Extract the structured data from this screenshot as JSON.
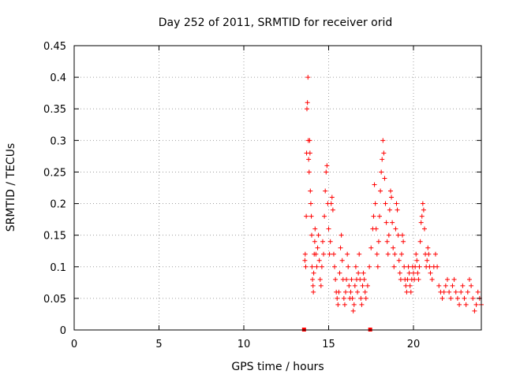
{
  "chart_data": {
    "type": "scatter",
    "title": "Day 252 of 2011, SRMTID for receiver orid",
    "xlabel": "GPS time / hours",
    "ylabel": "SRMTID / TECUs",
    "xlim": [
      0,
      24
    ],
    "ylim": [
      0,
      0.45
    ],
    "xticks": [
      0,
      5,
      10,
      15,
      20
    ],
    "yticks": [
      0,
      0.05,
      0.1,
      0.15,
      0.2,
      0.25,
      0.3,
      0.35,
      0.4,
      0.45
    ],
    "xtick_labels": [
      "0",
      "5",
      "10",
      "15",
      "20"
    ],
    "ytick_labels": [
      "0",
      "0.05",
      "0.1",
      "0.15",
      "0.2",
      "0.25",
      "0.3",
      "0.35",
      "0.4",
      "0.45"
    ],
    "grid": true,
    "marker_color": "#ff0000",
    "zero_markers_x": [
      13.55,
      17.45
    ],
    "series": [
      {
        "points": [
          [
            13.6,
            0.11
          ],
          [
            13.62,
            0.12
          ],
          [
            13.65,
            0.1
          ],
          [
            13.68,
            0.18
          ],
          [
            13.7,
            0.28
          ],
          [
            13.72,
            0.35
          ],
          [
            13.75,
            0.36
          ],
          [
            13.78,
            0.4
          ],
          [
            13.8,
            0.3
          ],
          [
            13.82,
            0.27
          ],
          [
            13.85,
            0.25
          ],
          [
            13.88,
            0.3
          ],
          [
            13.9,
            0.28
          ],
          [
            13.92,
            0.22
          ],
          [
            13.95,
            0.2
          ],
          [
            13.98,
            0.18
          ],
          [
            14.0,
            0.15
          ],
          [
            14.02,
            0.1
          ],
          [
            14.05,
            0.08
          ],
          [
            14.08,
            0.07
          ],
          [
            14.1,
            0.06
          ],
          [
            14.12,
            0.09
          ],
          [
            14.15,
            0.12
          ],
          [
            14.18,
            0.14
          ],
          [
            14.2,
            0.16
          ],
          [
            14.25,
            0.12
          ],
          [
            14.3,
            0.1
          ],
          [
            14.35,
            0.13
          ],
          [
            14.4,
            0.15
          ],
          [
            14.45,
            0.11
          ],
          [
            14.5,
            0.08
          ],
          [
            14.55,
            0.07
          ],
          [
            14.6,
            0.1
          ],
          [
            14.65,
            0.14
          ],
          [
            14.7,
            0.12
          ],
          [
            14.75,
            0.18
          ],
          [
            14.8,
            0.22
          ],
          [
            14.85,
            0.25
          ],
          [
            14.9,
            0.26
          ],
          [
            14.95,
            0.2
          ],
          [
            15.0,
            0.16
          ],
          [
            15.05,
            0.12
          ],
          [
            15.1,
            0.14
          ],
          [
            15.15,
            0.2
          ],
          [
            15.2,
            0.21
          ],
          [
            15.25,
            0.19
          ],
          [
            15.3,
            0.12
          ],
          [
            15.35,
            0.1
          ],
          [
            15.4,
            0.08
          ],
          [
            15.45,
            0.06
          ],
          [
            15.5,
            0.05
          ],
          [
            15.55,
            0.04
          ],
          [
            15.6,
            0.06
          ],
          [
            15.65,
            0.09
          ],
          [
            15.7,
            0.13
          ],
          [
            15.75,
            0.15
          ],
          [
            15.8,
            0.11
          ],
          [
            15.85,
            0.08
          ],
          [
            15.9,
            0.05
          ],
          [
            15.95,
            0.04
          ],
          [
            16.0,
            0.06
          ],
          [
            16.05,
            0.08
          ],
          [
            16.1,
            0.12
          ],
          [
            16.15,
            0.1
          ],
          [
            16.2,
            0.07
          ],
          [
            16.25,
            0.05
          ],
          [
            16.3,
            0.06
          ],
          [
            16.35,
            0.08
          ],
          [
            16.4,
            0.05
          ],
          [
            16.45,
            0.03
          ],
          [
            16.5,
            0.04
          ],
          [
            16.55,
            0.07
          ],
          [
            16.6,
            0.1
          ],
          [
            16.65,
            0.08
          ],
          [
            16.7,
            0.06
          ],
          [
            16.75,
            0.09
          ],
          [
            16.8,
            0.12
          ],
          [
            16.85,
            0.08
          ],
          [
            16.9,
            0.05
          ],
          [
            16.95,
            0.04
          ],
          [
            17.0,
            0.07
          ],
          [
            17.05,
            0.09
          ],
          [
            17.1,
            0.08
          ],
          [
            17.15,
            0.06
          ],
          [
            17.2,
            0.05
          ],
          [
            17.3,
            0.07
          ],
          [
            17.4,
            0.1
          ],
          [
            17.5,
            0.13
          ],
          [
            17.6,
            0.16
          ],
          [
            17.65,
            0.18
          ],
          [
            17.7,
            0.23
          ],
          [
            17.75,
            0.2
          ],
          [
            17.8,
            0.16
          ],
          [
            17.85,
            0.12
          ],
          [
            17.9,
            0.1
          ],
          [
            17.95,
            0.14
          ],
          [
            18.0,
            0.18
          ],
          [
            18.05,
            0.22
          ],
          [
            18.1,
            0.25
          ],
          [
            18.15,
            0.27
          ],
          [
            18.2,
            0.3
          ],
          [
            18.25,
            0.28
          ],
          [
            18.3,
            0.24
          ],
          [
            18.35,
            0.2
          ],
          [
            18.4,
            0.17
          ],
          [
            18.45,
            0.14
          ],
          [
            18.5,
            0.12
          ],
          [
            18.55,
            0.15
          ],
          [
            18.6,
            0.19
          ],
          [
            18.65,
            0.22
          ],
          [
            18.7,
            0.21
          ],
          [
            18.75,
            0.17
          ],
          [
            18.8,
            0.13
          ],
          [
            18.85,
            0.1
          ],
          [
            18.9,
            0.12
          ],
          [
            18.95,
            0.16
          ],
          [
            19.0,
            0.2
          ],
          [
            19.05,
            0.19
          ],
          [
            19.1,
            0.15
          ],
          [
            19.15,
            0.11
          ],
          [
            19.2,
            0.09
          ],
          [
            19.25,
            0.08
          ],
          [
            19.3,
            0.12
          ],
          [
            19.35,
            0.15
          ],
          [
            19.4,
            0.14
          ],
          [
            19.45,
            0.1
          ],
          [
            19.5,
            0.08
          ],
          [
            19.55,
            0.07
          ],
          [
            19.6,
            0.06
          ],
          [
            19.65,
            0.08
          ],
          [
            19.7,
            0.1
          ],
          [
            19.75,
            0.09
          ],
          [
            19.8,
            0.07
          ],
          [
            19.85,
            0.06
          ],
          [
            19.9,
            0.08
          ],
          [
            19.95,
            0.1
          ],
          [
            20.0,
            0.09
          ],
          [
            20.05,
            0.08
          ],
          [
            20.1,
            0.1
          ],
          [
            20.15,
            0.12
          ],
          [
            20.2,
            0.11
          ],
          [
            20.25,
            0.09
          ],
          [
            20.3,
            0.08
          ],
          [
            20.35,
            0.1
          ],
          [
            20.4,
            0.14
          ],
          [
            20.45,
            0.17
          ],
          [
            20.5,
            0.18
          ],
          [
            20.55,
            0.2
          ],
          [
            20.6,
            0.19
          ],
          [
            20.65,
            0.16
          ],
          [
            20.7,
            0.12
          ],
          [
            20.75,
            0.1
          ],
          [
            20.8,
            0.11
          ],
          [
            20.85,
            0.13
          ],
          [
            20.9,
            0.12
          ],
          [
            20.95,
            0.1
          ],
          [
            21.0,
            0.09
          ],
          [
            21.1,
            0.08
          ],
          [
            21.2,
            0.1
          ],
          [
            21.3,
            0.12
          ],
          [
            21.4,
            0.1
          ],
          [
            21.5,
            0.07
          ],
          [
            21.6,
            0.06
          ],
          [
            21.7,
            0.05
          ],
          [
            21.8,
            0.06
          ],
          [
            21.9,
            0.07
          ],
          [
            22.0,
            0.08
          ],
          [
            22.1,
            0.06
          ],
          [
            22.2,
            0.05
          ],
          [
            22.3,
            0.07
          ],
          [
            22.4,
            0.08
          ],
          [
            22.5,
            0.06
          ],
          [
            22.6,
            0.05
          ],
          [
            22.7,
            0.04
          ],
          [
            22.8,
            0.06
          ],
          [
            22.9,
            0.07
          ],
          [
            23.0,
            0.05
          ],
          [
            23.1,
            0.04
          ],
          [
            23.2,
            0.06
          ],
          [
            23.3,
            0.08
          ],
          [
            23.4,
            0.07
          ],
          [
            23.5,
            0.05
          ],
          [
            23.6,
            0.03
          ],
          [
            23.7,
            0.04
          ],
          [
            23.8,
            0.06
          ],
          [
            23.9,
            0.05
          ],
          [
            24.0,
            0.04
          ]
        ]
      }
    ]
  }
}
